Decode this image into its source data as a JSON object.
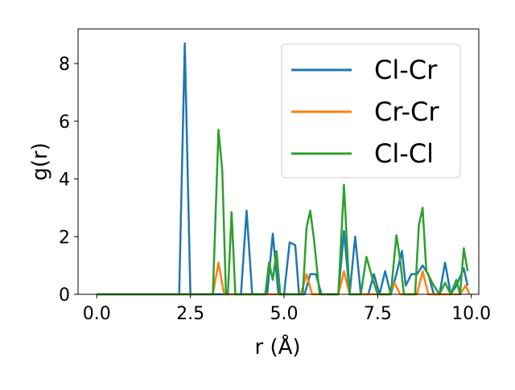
{
  "chart_data": {
    "type": "line",
    "title": "",
    "xlabel": "r (Å)",
    "ylabel": "g(r)",
    "xlim": [
      -0.5,
      10.2
    ],
    "ylim": [
      0,
      9.2
    ],
    "xticks": [
      0.0,
      2.5,
      5.0,
      7.5,
      10.0
    ],
    "xtick_labels": [
      "0.0",
      "2.5",
      "5.0",
      "7.5",
      "10.0"
    ],
    "yticks": [
      0,
      2,
      4,
      6,
      8
    ],
    "ytick_labels": [
      "0",
      "2",
      "4",
      "6",
      "8"
    ],
    "grid": false,
    "legend_position": "upper-right",
    "series": [
      {
        "name": "Cl-Cr",
        "color": "#1f77b4",
        "points": [
          [
            0.0,
            0
          ],
          [
            2.2,
            0
          ],
          [
            2.35,
            8.7
          ],
          [
            2.5,
            0
          ],
          [
            3.85,
            0
          ],
          [
            4.0,
            2.9
          ],
          [
            4.15,
            0
          ],
          [
            4.55,
            0
          ],
          [
            4.7,
            2.1
          ],
          [
            4.85,
            0
          ],
          [
            5.0,
            0
          ],
          [
            5.15,
            1.8
          ],
          [
            5.3,
            1.7
          ],
          [
            5.4,
            0
          ],
          [
            5.55,
            0
          ],
          [
            5.7,
            0.7
          ],
          [
            5.85,
            0.7
          ],
          [
            6.0,
            0
          ],
          [
            6.45,
            0
          ],
          [
            6.6,
            2.2
          ],
          [
            6.75,
            0
          ],
          [
            6.9,
            2.0
          ],
          [
            7.05,
            0
          ],
          [
            7.25,
            0
          ],
          [
            7.4,
            0.7
          ],
          [
            7.55,
            0
          ],
          [
            7.7,
            0.8
          ],
          [
            7.85,
            0
          ],
          [
            8.0,
            0.7
          ],
          [
            8.15,
            1.5
          ],
          [
            8.25,
            0.3
          ],
          [
            8.4,
            0.7
          ],
          [
            8.55,
            0.7
          ],
          [
            8.7,
            1.0
          ],
          [
            8.85,
            0.7
          ],
          [
            9.0,
            0
          ],
          [
            9.15,
            0
          ],
          [
            9.3,
            1.1
          ],
          [
            9.45,
            0
          ],
          [
            9.6,
            0.3
          ],
          [
            9.7,
            0.6
          ],
          [
            9.8,
            0.9
          ],
          [
            9.9,
            0.3
          ]
        ]
      },
      {
        "name": "Cr-Cr",
        "color": "#ff7f0e",
        "points": [
          [
            0.0,
            0
          ],
          [
            3.1,
            0
          ],
          [
            3.25,
            1.1
          ],
          [
            3.4,
            0
          ],
          [
            5.45,
            0
          ],
          [
            5.6,
            0.7
          ],
          [
            5.75,
            0
          ],
          [
            6.45,
            0
          ],
          [
            6.6,
            0.8
          ],
          [
            6.75,
            0
          ],
          [
            7.8,
            0
          ],
          [
            7.95,
            0.4
          ],
          [
            8.1,
            0
          ],
          [
            8.55,
            0
          ],
          [
            8.7,
            0.8
          ],
          [
            8.85,
            0
          ],
          [
            9.7,
            0
          ],
          [
            9.85,
            0.3
          ],
          [
            9.95,
            0
          ]
        ]
      },
      {
        "name": "Cl-Cl",
        "color": "#2ca02c",
        "points": [
          [
            0.0,
            0
          ],
          [
            3.1,
            0
          ],
          [
            3.25,
            5.7
          ],
          [
            3.35,
            4.3
          ],
          [
            3.45,
            0
          ],
          [
            3.5,
            0
          ],
          [
            3.6,
            2.85
          ],
          [
            3.7,
            0
          ],
          [
            4.5,
            0
          ],
          [
            4.6,
            1.1
          ],
          [
            4.7,
            0.5
          ],
          [
            4.8,
            1.5
          ],
          [
            4.9,
            0
          ],
          [
            5.5,
            0
          ],
          [
            5.6,
            2.3
          ],
          [
            5.7,
            2.9
          ],
          [
            5.8,
            1.9
          ],
          [
            5.95,
            0
          ],
          [
            6.45,
            0
          ],
          [
            6.6,
            3.8
          ],
          [
            6.75,
            0
          ],
          [
            7.05,
            0
          ],
          [
            7.2,
            1.3
          ],
          [
            7.35,
            0.6
          ],
          [
            7.5,
            0
          ],
          [
            7.85,
            0
          ],
          [
            8.0,
            2.05
          ],
          [
            8.1,
            1.2
          ],
          [
            8.2,
            0
          ],
          [
            8.5,
            0
          ],
          [
            8.6,
            2.4
          ],
          [
            8.7,
            3.0
          ],
          [
            8.8,
            0.8
          ],
          [
            9.0,
            0.3
          ],
          [
            9.15,
            0
          ],
          [
            9.3,
            0.4
          ],
          [
            9.45,
            0
          ],
          [
            9.6,
            0.5
          ],
          [
            9.7,
            0
          ],
          [
            9.8,
            1.6
          ],
          [
            9.9,
            0.8
          ]
        ]
      }
    ]
  }
}
